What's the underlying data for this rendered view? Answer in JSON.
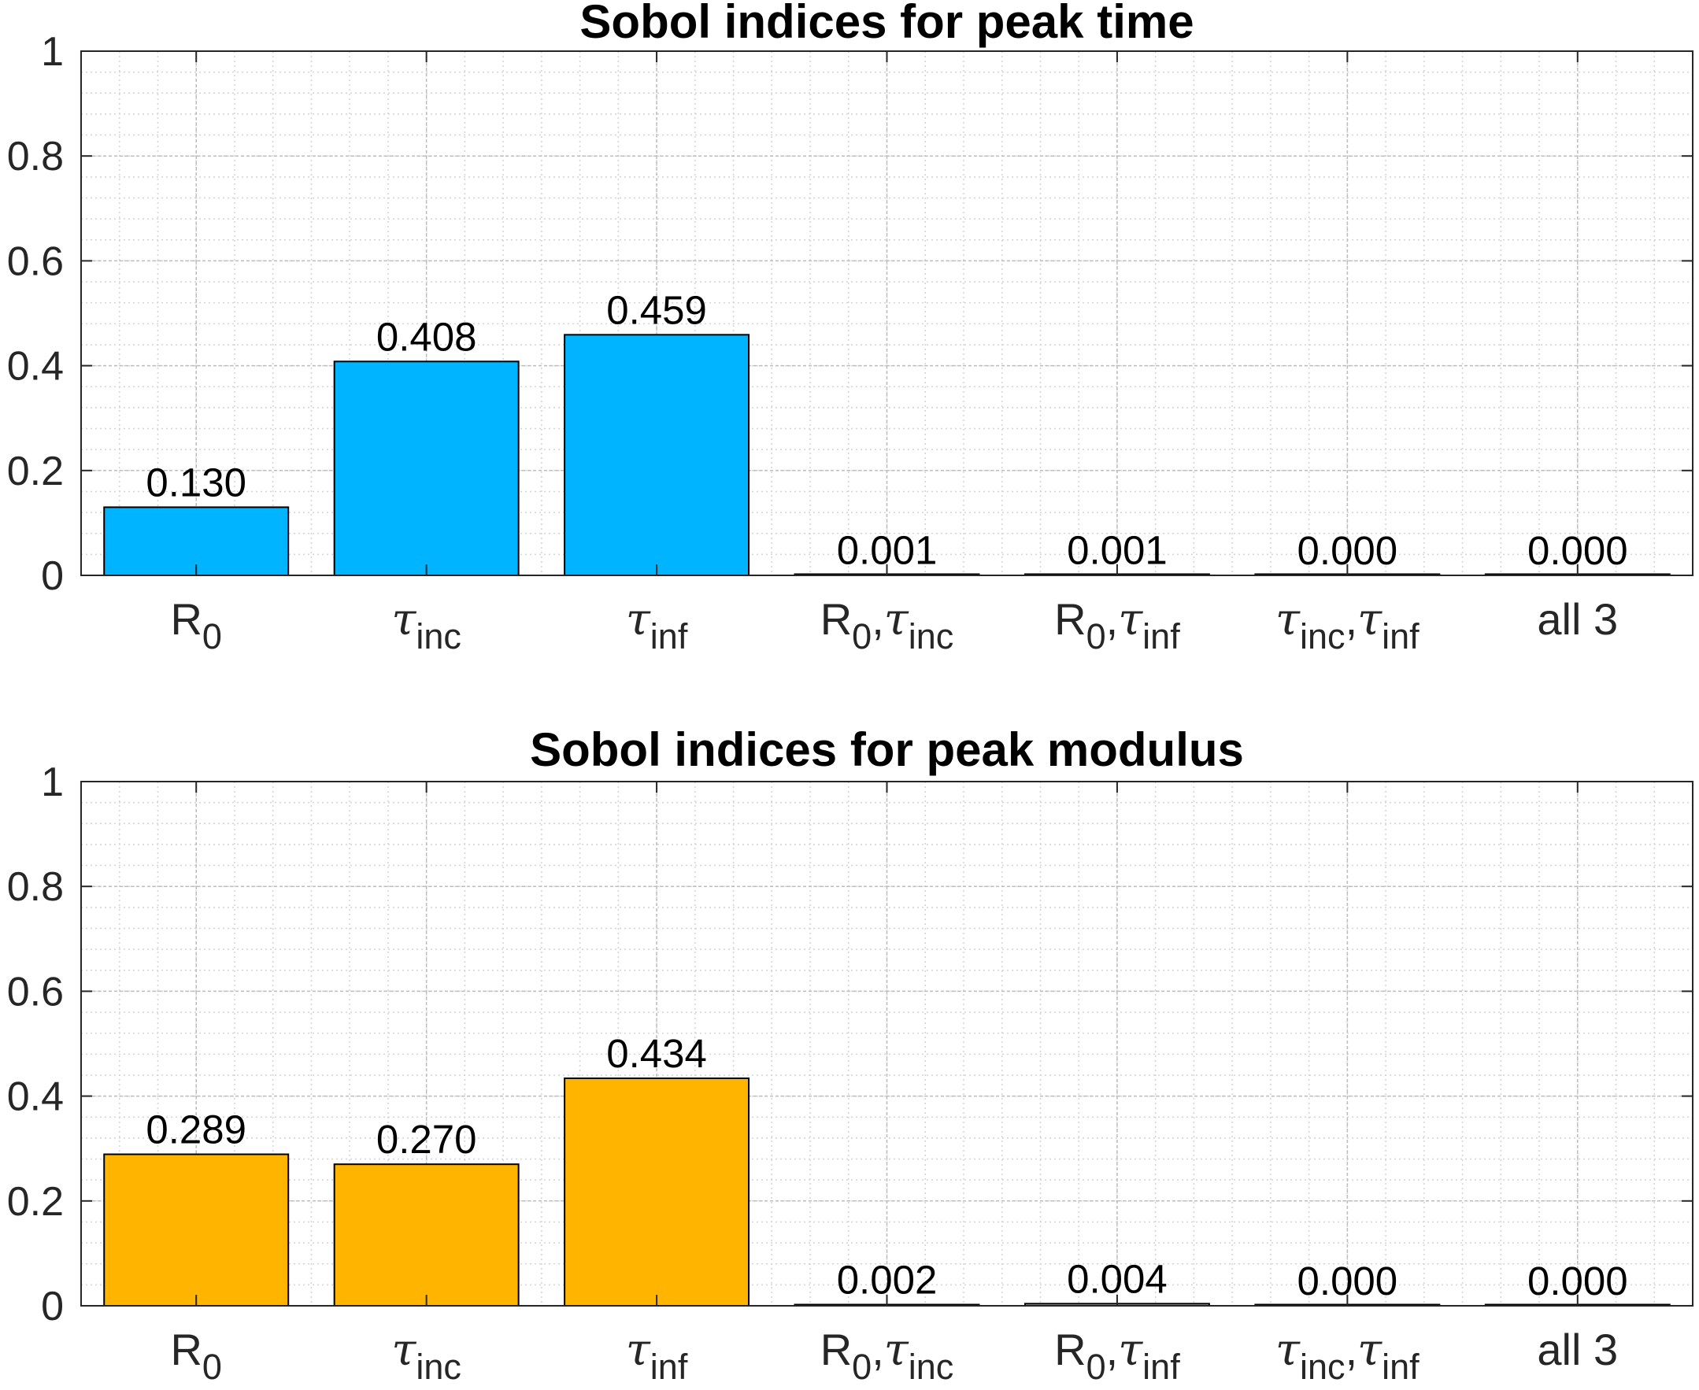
{
  "chart_data": [
    {
      "type": "bar",
      "title": "Sobol indices for peak time",
      "categories": [
        {
          "base": "R",
          "sub": "0"
        },
        {
          "base": "τ",
          "sub": "inc"
        },
        {
          "base": "τ",
          "sub": "inf"
        },
        {
          "base": "R",
          "sub": "0",
          "base2": "τ",
          "sub2": "inc"
        },
        {
          "base": "R",
          "sub": "0",
          "base2": "τ",
          "sub2": "inf"
        },
        {
          "base": "τ",
          "sub": "inc",
          "base2": "τ",
          "sub2": "inf"
        },
        {
          "base": "all 3"
        }
      ],
      "values": [
        0.13,
        0.408,
        0.459,
        0.001,
        0.001,
        0.0,
        0.0
      ],
      "data_labels": [
        "0.130",
        "0.408",
        "0.459",
        "0.001",
        "0.001",
        "0.000",
        "0.000"
      ],
      "color": "#00B4FF",
      "ylim": [
        0,
        1
      ],
      "yticks": [
        "0",
        "0.2",
        "0.4",
        "0.6",
        "0.8",
        "1"
      ],
      "grid": true,
      "minor_grid": true,
      "legend": "none"
    },
    {
      "type": "bar",
      "title": "Sobol indices for peak modulus",
      "categories": [
        {
          "base": "R",
          "sub": "0"
        },
        {
          "base": "τ",
          "sub": "inc"
        },
        {
          "base": "τ",
          "sub": "inf"
        },
        {
          "base": "R",
          "sub": "0",
          "base2": "τ",
          "sub2": "inc"
        },
        {
          "base": "R",
          "sub": "0",
          "base2": "τ",
          "sub2": "inf"
        },
        {
          "base": "τ",
          "sub": "inc",
          "base2": "τ",
          "sub2": "inf"
        },
        {
          "base": "all 3"
        }
      ],
      "values": [
        0.289,
        0.27,
        0.434,
        0.002,
        0.004,
        0.0,
        0.0
      ],
      "data_labels": [
        "0.289",
        "0.270",
        "0.434",
        "0.002",
        "0.004",
        "0.000",
        "0.000"
      ],
      "color": "#FFB400",
      "ylim": [
        0,
        1
      ],
      "yticks": [
        "0",
        "0.2",
        "0.4",
        "0.6",
        "0.8",
        "1"
      ],
      "grid": true,
      "minor_grid": true,
      "legend": "none"
    }
  ]
}
